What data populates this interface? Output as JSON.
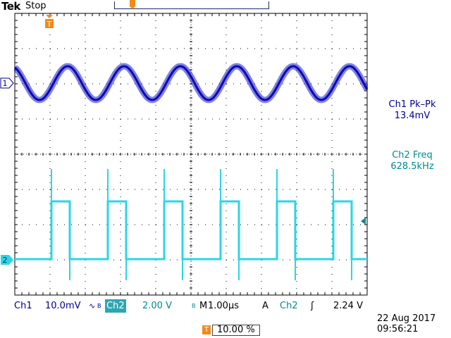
{
  "header": {
    "brand": "Tek",
    "status": "Stop"
  },
  "channels": {
    "ch1_marker": "1",
    "ch2_marker": "2",
    "trigger_marker": "T"
  },
  "measurements": {
    "ch1": {
      "label": "Ch1 Pk–Pk",
      "value": "13.4mV"
    },
    "ch2": {
      "label": "Ch2 Freq",
      "value": "628.5kHz"
    }
  },
  "bottom_bar": {
    "ch1_label": "Ch1",
    "ch1_scale": "10.0mV",
    "ch1_coupling": "∿",
    "ch1_bw": "B",
    "ch2_label": "Ch2",
    "ch2_scale": "2.00 V",
    "ch2_bw": "B",
    "timebase_label": "M",
    "timebase": "1.00µs",
    "trigger_mode": "A",
    "trigger_source": "Ch2",
    "trigger_slope": "ʃ",
    "trigger_level": "2.24 V"
  },
  "date": "22 Aug 2017",
  "time": "09:56:21",
  "trigger_position": {
    "marker": "T",
    "value": "10.00 %"
  },
  "colors": {
    "ch1": "#1a1acc",
    "ch2": "#2ad6e6",
    "trigger": "#f08a1c",
    "grid": "#000000"
  }
}
